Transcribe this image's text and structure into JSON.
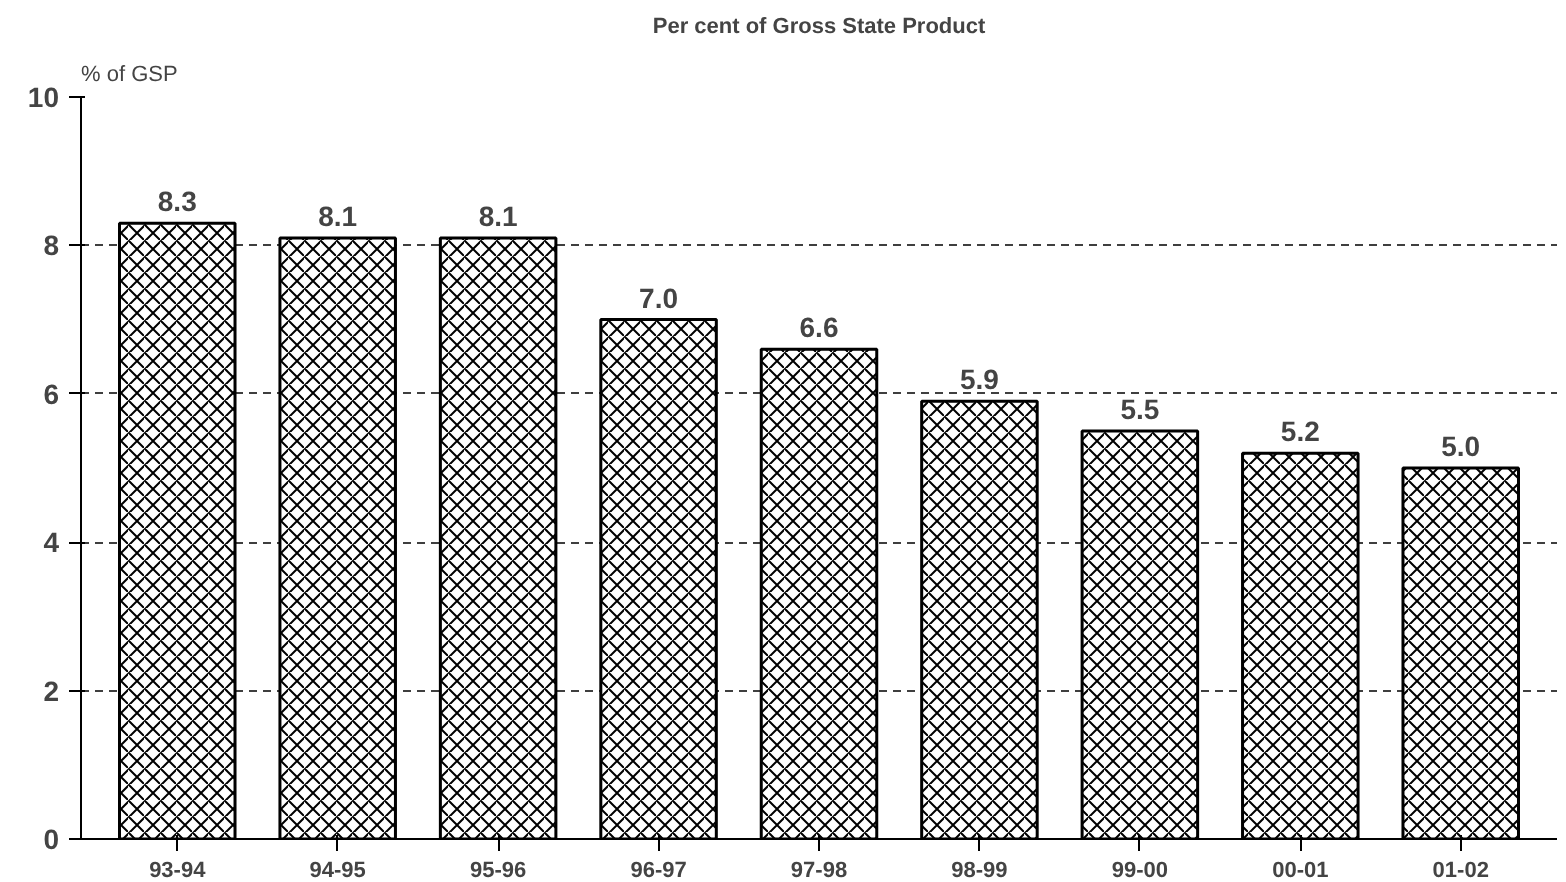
{
  "chart_data": {
    "type": "bar",
    "title": "Per cent of Gross State Product",
    "ylabel": "% of GSP",
    "categories": [
      "93-94",
      "94-95",
      "95-96",
      "96-97",
      "97-98",
      "98-99",
      "99-00",
      "00-01",
      "01-02"
    ],
    "values": [
      8.3,
      8.1,
      8.1,
      7.0,
      6.6,
      5.9,
      5.5,
      5.2,
      5.0
    ],
    "value_labels": [
      "8.3",
      "8.1",
      "8.1",
      "7.0",
      "6.6",
      "5.9",
      "5.5",
      "5.2",
      "5.0"
    ],
    "color": "#000000",
    "ylim": [
      0,
      10
    ],
    "yticks": [
      0,
      2,
      4,
      6,
      8,
      10
    ],
    "grid": "y"
  }
}
